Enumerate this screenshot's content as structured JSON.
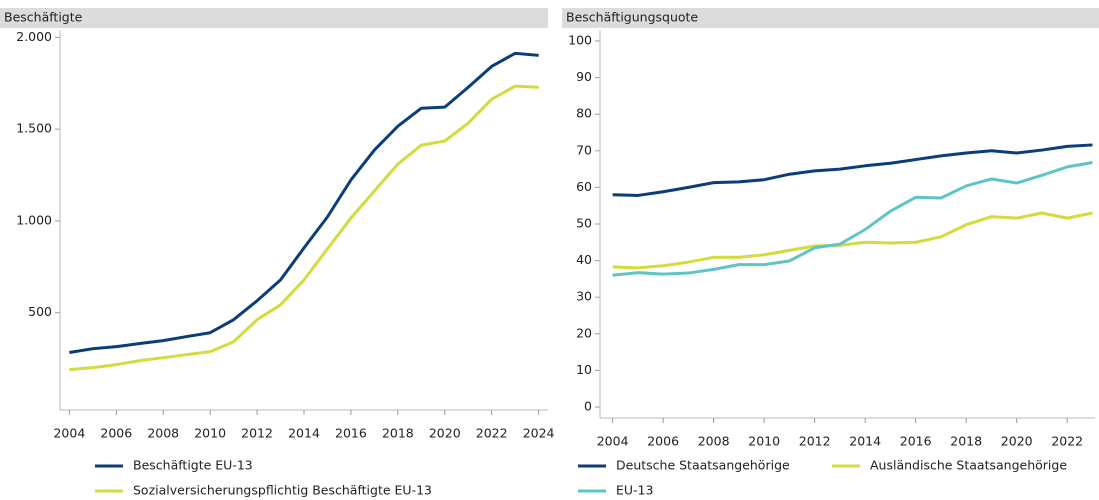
{
  "chart_data": [
    {
      "type": "line",
      "title": "Beschäftigte",
      "x": [
        2004,
        2005,
        2006,
        2007,
        2008,
        2009,
        2010,
        2011,
        2012,
        2013,
        2014,
        2015,
        2016,
        2017,
        2018,
        2019,
        2020,
        2021,
        2022,
        2023,
        2024
      ],
      "xlim": [
        2003.6,
        2024.4
      ],
      "xticks": [
        2004,
        2006,
        2008,
        2010,
        2012,
        2014,
        2016,
        2018,
        2020,
        2022,
        2024
      ],
      "ylim": [
        -30,
        2040
      ],
      "yticks": [
        500,
        {
          "value": 1000,
          "label": "1.000"
        },
        {
          "value": 1500,
          "label": "1.500"
        },
        {
          "value": 2000,
          "label": "2.000"
        }
      ],
      "series": [
        {
          "name": "Beschäftigte EU-13",
          "color": "#0a3d79",
          "values": [
            283,
            304,
            315,
            332,
            348,
            370,
            391,
            462,
            565,
            679,
            853,
            1022,
            1223,
            1386,
            1516,
            1614,
            1620,
            1728,
            1842,
            1913,
            1902
          ]
        },
        {
          "name": "Sozialversicherungspflichtig Beschäftigte EU-13",
          "color": "#d2dc3c",
          "values": [
            190,
            201,
            217,
            239,
            255,
            272,
            288,
            342,
            462,
            543,
            679,
            848,
            1016,
            1163,
            1310,
            1413,
            1435,
            1533,
            1663,
            1734,
            1728
          ]
        }
      ]
    },
    {
      "type": "line",
      "title": "Beschäftigungsquote",
      "x": [
        2004,
        2005,
        2006,
        2007,
        2008,
        2009,
        2010,
        2011,
        2012,
        2013,
        2014,
        2015,
        2016,
        2017,
        2018,
        2019,
        2020,
        2021,
        2022,
        2023
      ],
      "xlim": [
        2003.5,
        2023.1
      ],
      "xticks": [
        2004,
        2006,
        2008,
        2010,
        2012,
        2014,
        2016,
        2018,
        2020,
        2022
      ],
      "ylim": [
        -3,
        103
      ],
      "yticks": [
        0,
        10,
        20,
        30,
        40,
        50,
        60,
        70,
        80,
        90,
        100
      ],
      "series": [
        {
          "name": "Deutsche Staatsangehörige",
          "color": "#0a3d79",
          "values": [
            58,
            57.8,
            58.8,
            60,
            61.3,
            61.5,
            62.1,
            63.6,
            64.5,
            65,
            65.9,
            66.6,
            67.6,
            68.6,
            69.4,
            70,
            69.4,
            70.2,
            71.2,
            71.6
          ]
        },
        {
          "name": "Ausländische Staatsangehörige",
          "color": "#d2dc3c",
          "values": [
            38.3,
            38,
            38.6,
            39.6,
            40.9,
            40.9,
            41.6,
            42.8,
            44,
            44.2,
            45,
            44.8,
            45,
            46.5,
            49.8,
            52,
            51.6,
            53,
            51.6,
            53
          ]
        },
        {
          "name": "EU-13",
          "color": "#5fc5c4",
          "values": [
            36,
            36.7,
            36.3,
            36.6,
            37.6,
            38.9,
            38.9,
            39.9,
            43.5,
            44.5,
            48.5,
            53.5,
            57.3,
            57.1,
            60.4,
            62.3,
            61.2,
            63.3,
            65.6,
            66.8
          ]
        }
      ]
    }
  ]
}
